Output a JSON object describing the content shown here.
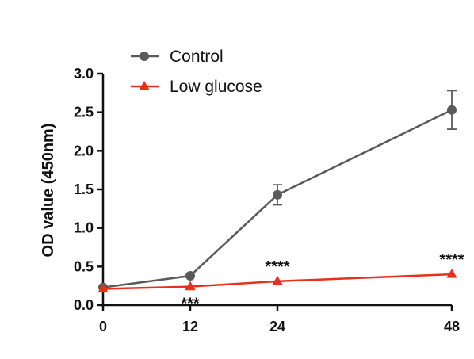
{
  "chart_data": {
    "type": "line",
    "title": "",
    "xlabel": "",
    "ylabel": "OD  value (450nm)",
    "x": [
      0,
      12,
      24,
      48
    ],
    "x_tick_labels": [
      "0",
      "12",
      "24",
      "48"
    ],
    "ylim": [
      0,
      3.0
    ],
    "y_tick_labels": [
      "0.0",
      "0.5",
      "1.0",
      "1.5",
      "2.0",
      "2.5",
      "3.0"
    ],
    "grid": false,
    "legend_position": "top-left",
    "series": [
      {
        "name": "Control",
        "values": [
          0.23,
          0.38,
          1.43,
          2.53
        ],
        "error": [
          0.0,
          0.0,
          0.13,
          0.25
        ],
        "color": "#5a5a5a",
        "marker": "circle"
      },
      {
        "name": "Low glucose",
        "values": [
          0.21,
          0.24,
          0.31,
          0.4
        ],
        "error": [
          0.0,
          0.0,
          0.0,
          0.0
        ],
        "color": "#e8301c",
        "marker": "triangle"
      }
    ],
    "annotations": [
      {
        "x": 12,
        "text": "***",
        "placement": "below"
      },
      {
        "x": 24,
        "text": "****",
        "placement": "above"
      },
      {
        "x": 48,
        "text": "****",
        "placement": "above"
      }
    ]
  }
}
